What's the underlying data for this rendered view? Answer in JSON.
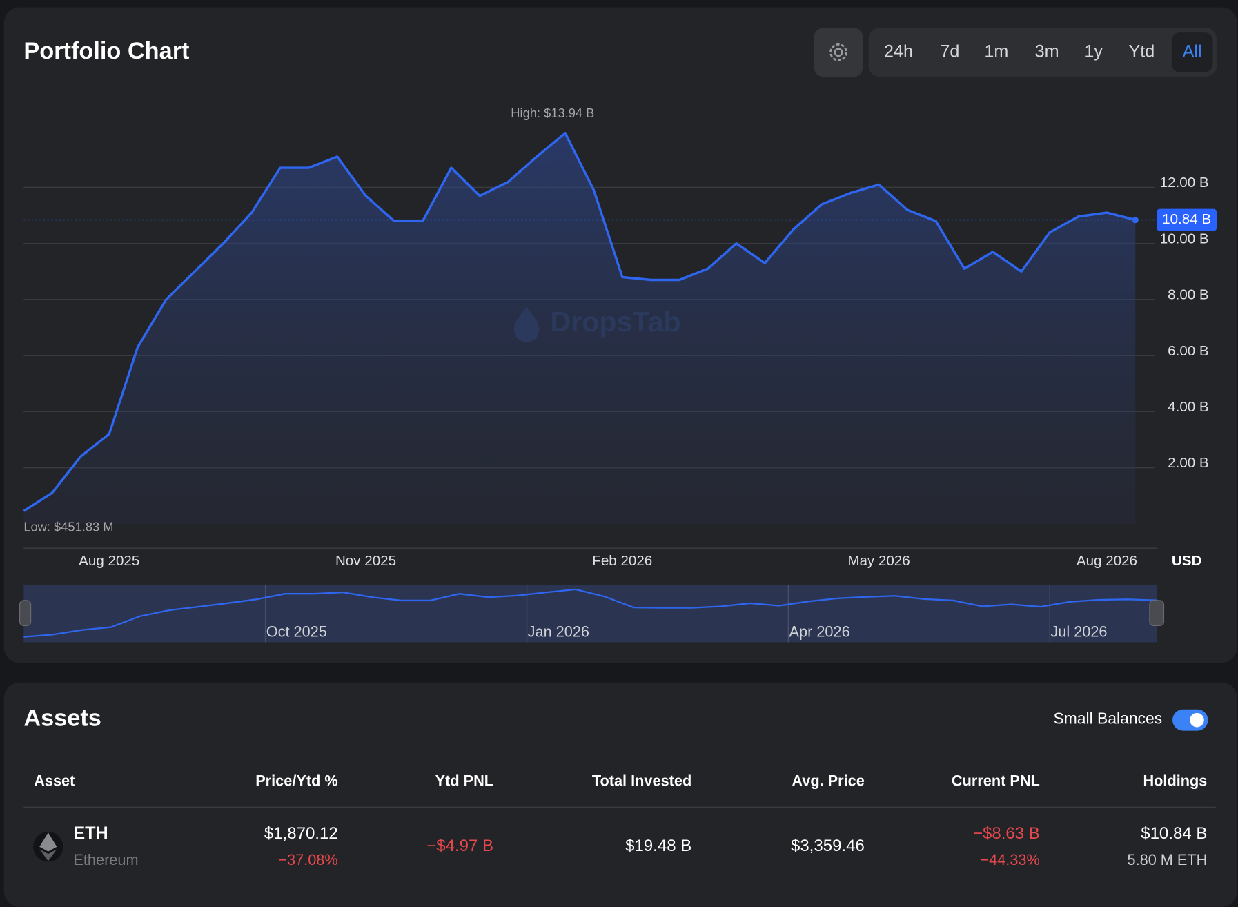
{
  "chart_card": {
    "title": "Portfolio Chart",
    "ranges": [
      "24h",
      "7d",
      "1m",
      "3m",
      "1y",
      "Ytd",
      "All"
    ],
    "active_range": "All"
  },
  "chart_data": {
    "type": "line",
    "categories": [
      null,
      null,
      null,
      "Aug 2025",
      null,
      null,
      null,
      null,
      null,
      null,
      null,
      null,
      "Nov 2025",
      null,
      null,
      null,
      null,
      null,
      null,
      null,
      null,
      "Feb 2026",
      null,
      null,
      null,
      null,
      null,
      null,
      null,
      null,
      "May 2026",
      null,
      null,
      null,
      null,
      null,
      null,
      null,
      "Aug 2026",
      null
    ],
    "values": [
      0.45183,
      1.1,
      2.4,
      3.2,
      6.3,
      8,
      9,
      10,
      11.1,
      12.7,
      12.7,
      13.1,
      11.7,
      10.8,
      10.8,
      12.7,
      11.7,
      12.2,
      13.1,
      13.94,
      11.9,
      8.8,
      8.7,
      8.7,
      9.1,
      10,
      9.3,
      10.5,
      11.4,
      11.8,
      12.1,
      11.2,
      10.8,
      9.1,
      9.7,
      9,
      10.4,
      10.96,
      11.1,
      10.84
    ],
    "color": "#2f66f0",
    "ylim": [
      -0.85,
      15.3
    ],
    "yticks": [
      {
        "value": 2,
        "label": "2.00 B"
      },
      {
        "value": 4,
        "label": "4.00 B"
      },
      {
        "value": 6,
        "label": "6.00 B"
      },
      {
        "value": 8,
        "label": "8.00 B"
      },
      {
        "value": 10,
        "label": "10.00 B"
      },
      {
        "value": 12,
        "label": "12.00 B"
      }
    ],
    "grid": true,
    "high_label": "High: $13.94 B",
    "low_label": "Low: $451.83 M",
    "y_unit": "USD",
    "current": {
      "value": 10.84,
      "label": "10.84 B"
    },
    "watermark": "DropsTab",
    "navigator_labels": [
      "Oct 2025",
      "Jan 2026",
      "Apr 2026",
      "Jul 2026"
    ]
  },
  "assets": {
    "title": "Assets",
    "toggle_label": "Small Balances",
    "toggle_on": true,
    "columns": [
      "Asset",
      "Price/Ytd %",
      "Ytd PNL",
      "Total Invested",
      "Avg. Price",
      "Current PNL",
      "Holdings"
    ],
    "rows": [
      {
        "symbol": "ETH",
        "name": "Ethereum",
        "price": "$1,870.12",
        "ytd_pct": "−37.08%",
        "ytd_pnl": "−$4.97 B",
        "total_invested": "$19.48 B",
        "avg_price": "$3,359.46",
        "current_pnl": "−$8.63 B",
        "current_pnl_pct": "−44.33%",
        "holdings_value": "$10.84 B",
        "holdings_amount": "5.80 M ETH"
      }
    ]
  }
}
